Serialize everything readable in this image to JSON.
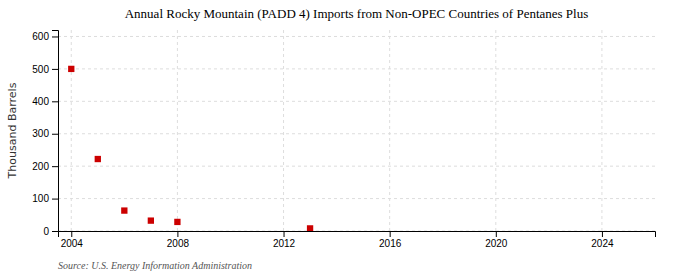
{
  "chart_data": {
    "type": "scatter",
    "title": "Annual Rocky Mountain (PADD 4) Imports from Non-OPEC Countries of Pentanes Plus",
    "ylabel": "Thousand Barrels",
    "source": "Source: U.S. Energy Information Administration",
    "x": [
      2004,
      2005,
      2006,
      2007,
      2008,
      2013
    ],
    "values": [
      500,
      222,
      63,
      32,
      28,
      8
    ],
    "color": "#cc0000",
    "marker": "square",
    "xlim": [
      2003.5,
      2026
    ],
    "ylim": [
      0,
      620
    ],
    "xticks": [
      2004,
      2008,
      2012,
      2016,
      2020,
      2024
    ],
    "yticks": [
      0,
      100,
      200,
      300,
      400,
      500,
      600
    ],
    "grid": true
  }
}
